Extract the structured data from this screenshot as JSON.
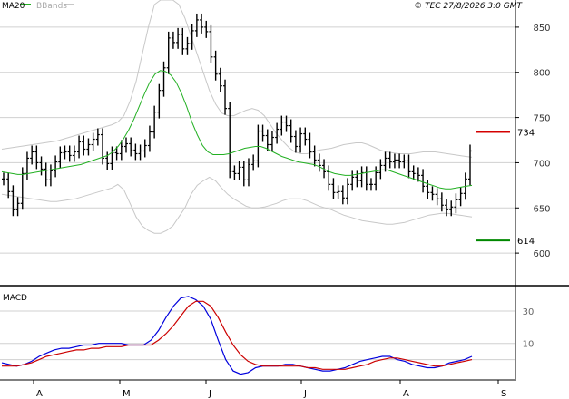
{
  "header": {
    "ma_label": "MA20",
    "bb_label": "BBands",
    "copyright": "© TEC 27/8/2026 3:0 GMT"
  },
  "colors": {
    "ma": "#22b022",
    "bbands": "#c8c8c8",
    "bars": "#000000",
    "grid": "#d0d0d0",
    "resistance": "#d40000",
    "support": "#008800",
    "macd": "#0000dd",
    "signal": "#cc0000"
  },
  "chart_data": [
    {
      "type": "ohlc",
      "x_labels": [
        "A",
        "M",
        "J",
        "J",
        "A",
        "S"
      ],
      "y_ticks": [
        600,
        650,
        700,
        750,
        800,
        850
      ],
      "ylim": [
        564,
        880
      ],
      "levels": [
        {
          "label": "734",
          "value": 734,
          "kind": "resistance"
        },
        {
          "label": "614",
          "value": 614,
          "kind": "support"
        }
      ],
      "series": {
        "close": [
          682,
          668,
          648,
          655,
          688,
          705,
          712,
          700,
          693,
          681,
          691,
          701,
          711,
          712,
          708,
          712,
          723,
          715,
          720,
          726,
          731,
          705,
          699,
          711,
          710,
          718,
          721,
          714,
          710,
          713,
          719,
          734,
          756,
          780,
          805,
          838,
          833,
          842,
          826,
          832,
          846,
          858,
          850,
          845,
          817,
          798,
          785,
          760,
          690,
          688,
          695,
          681,
          698,
          702,
          735,
          730,
          720,
          728,
          737,
          745,
          741,
          729,
          718,
          732,
          726,
          712,
          703,
          697,
          690,
          676,
          667,
          668,
          661,
          676,
          684,
          680,
          689,
          676,
          676,
          689,
          697,
          705,
          701,
          703,
          701,
          702,
          690,
          688,
          686,
          674,
          667,
          665,
          660,
          653,
          648,
          651,
          659,
          666,
          682,
          713
        ],
        "ma20": [
          690,
          689,
          688,
          687,
          687,
          688,
          689,
          690,
          691,
          692,
          693,
          694,
          695,
          696,
          697,
          698,
          700,
          702,
          704,
          706,
          708,
          712,
          718,
          726,
          736,
          748,
          762,
          776,
          789,
          798,
          802,
          801,
          797,
          789,
          777,
          762,
          745,
          731,
          719,
          712,
          709,
          709,
          709,
          710,
          712,
          714,
          716,
          717,
          718,
          718,
          716,
          713,
          710,
          707,
          705,
          703,
          701,
          700,
          699,
          698,
          696,
          693,
          690,
          688,
          687,
          686,
          686,
          687,
          688,
          689,
          690,
          691,
          692,
          692,
          690,
          688,
          686,
          684,
          682,
          680,
          678,
          676,
          674,
          672,
          671,
          671,
          672,
          673,
          674,
          675
        ],
        "bb_upper": [
          715,
          716,
          717,
          718,
          719,
          720,
          721,
          722,
          723,
          724,
          726,
          728,
          730,
          732,
          734,
          736,
          738,
          740,
          742,
          745,
          752,
          768,
          790,
          820,
          850,
          875,
          880,
          880,
          880,
          875,
          860,
          840,
          820,
          800,
          780,
          765,
          755,
          752,
          752,
          755,
          758,
          760,
          758,
          752,
          742,
          732,
          724,
          717,
          712,
          710,
          710,
          712,
          714,
          715,
          716,
          718,
          720,
          721,
          722,
          722,
          720,
          717,
          714,
          712,
          711,
          710,
          710,
          710,
          711,
          712,
          712,
          712,
          711,
          710,
          709,
          708,
          707,
          706
        ],
        "bb_lower": [
          665,
          664,
          663,
          662,
          661,
          660,
          659,
          658,
          657,
          657,
          658,
          659,
          660,
          662,
          664,
          666,
          668,
          670,
          672,
          676,
          670,
          655,
          640,
          630,
          625,
          622,
          622,
          625,
          630,
          640,
          650,
          665,
          675,
          680,
          684,
          680,
          672,
          665,
          660,
          656,
          652,
          650,
          650,
          651,
          653,
          655,
          658,
          660,
          660,
          660,
          658,
          655,
          652,
          650,
          648,
          645,
          642,
          640,
          638,
          636,
          635,
          634,
          633,
          632,
          632,
          633,
          634,
          636,
          638,
          640,
          642,
          643,
          644,
          644,
          643,
          642,
          641,
          640
        ]
      }
    },
    {
      "type": "line",
      "title": "MACD",
      "y_ticks": [
        "30",
        "10"
      ],
      "series": [
        {
          "name": "MACD",
          "values": [
            -2,
            -3,
            -4,
            -3,
            -1,
            2,
            4,
            6,
            7,
            7,
            8,
            9,
            9,
            10,
            10,
            10,
            10,
            9,
            9,
            9,
            12,
            18,
            26,
            33,
            38,
            39,
            37,
            33,
            25,
            12,
            0,
            -7,
            -9,
            -8,
            -5,
            -4,
            -4,
            -4,
            -3,
            -3,
            -4,
            -5,
            -6,
            -7,
            -7,
            -6,
            -5,
            -3,
            -1,
            0,
            1,
            2,
            2,
            0,
            -1,
            -3,
            -4,
            -5,
            -5,
            -4,
            -2,
            -1,
            0,
            2
          ]
        },
        {
          "name": "Signal",
          "values": [
            -4,
            -4,
            -4,
            -3,
            -2,
            0,
            2,
            3,
            4,
            5,
            6,
            6,
            7,
            7,
            8,
            8,
            8,
            9,
            9,
            9,
            9,
            12,
            16,
            21,
            27,
            33,
            36,
            36,
            33,
            26,
            17,
            9,
            3,
            -1,
            -3,
            -4,
            -4,
            -4,
            -4,
            -4,
            -4,
            -5,
            -5,
            -6,
            -6,
            -6,
            -6,
            -5,
            -4,
            -3,
            -1,
            0,
            1,
            1,
            0,
            -1,
            -2,
            -3,
            -4,
            -4,
            -3,
            -2,
            -1,
            0
          ]
        }
      ]
    }
  ]
}
